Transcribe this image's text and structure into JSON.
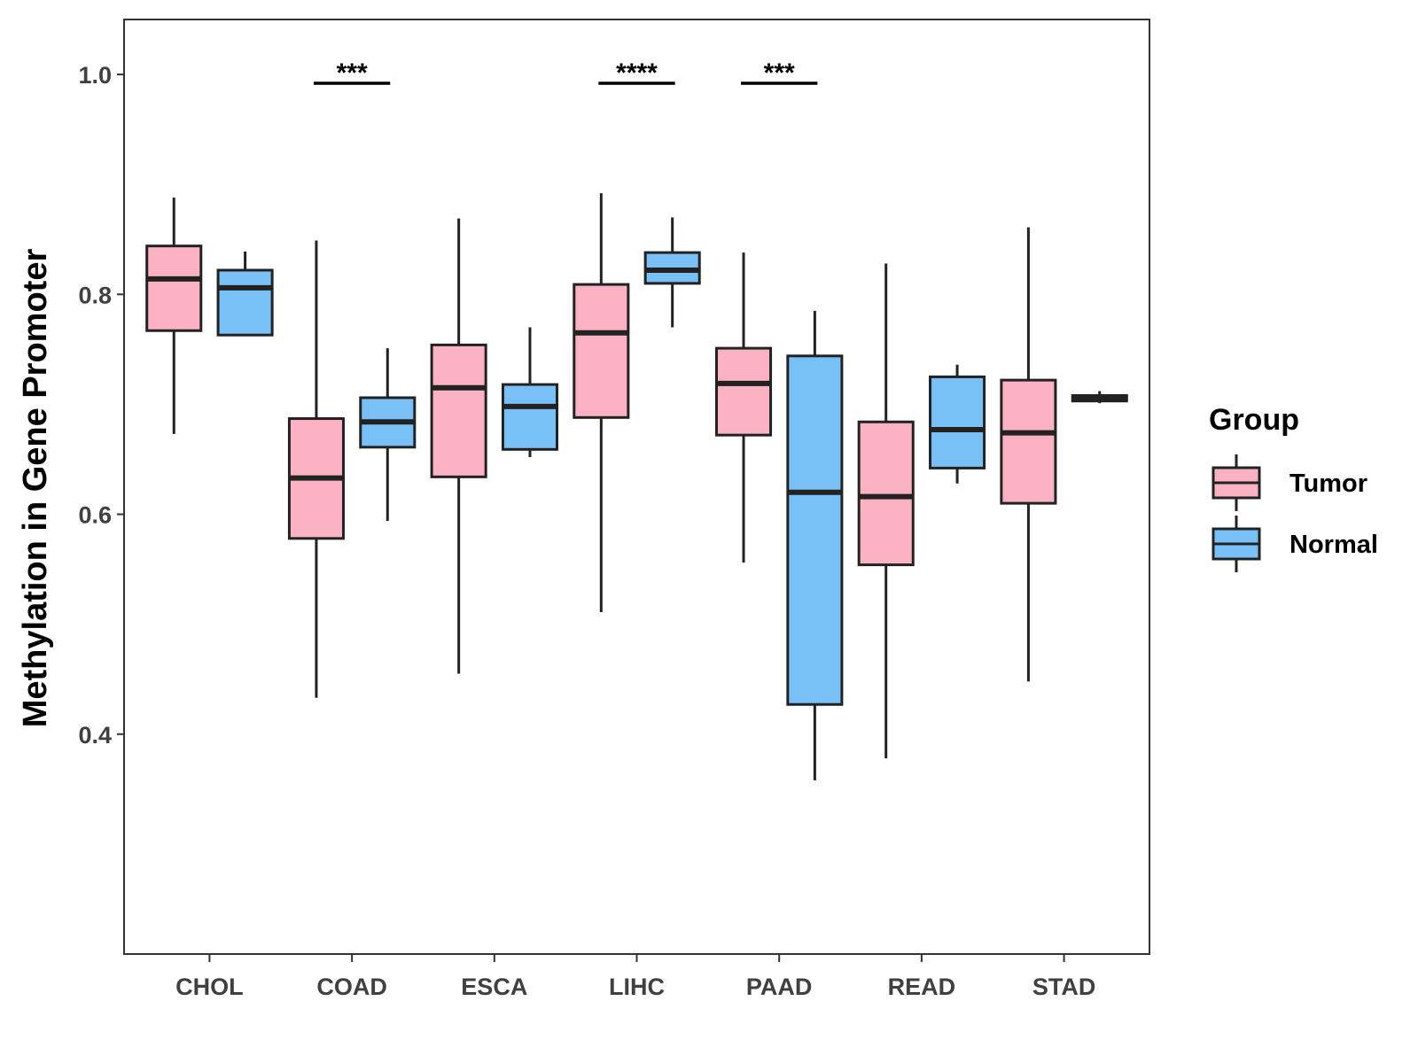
{
  "chart_data": {
    "type": "boxplot",
    "title": "",
    "xlabel": "",
    "ylabel": "Methylation in Gene Promoter",
    "ylim": [
      0.2,
      1.05
    ],
    "y_ticks": [
      0.4,
      0.6,
      0.8,
      1.0
    ],
    "y_tick_labels": [
      "0.4",
      "0.6",
      "0.8",
      "1.0"
    ],
    "categories": [
      "CHOL",
      "COAD",
      "ESCA",
      "LIHC",
      "PAAD",
      "READ",
      "STAD"
    ],
    "legend": {
      "title": "Group",
      "position": "right",
      "entries": [
        {
          "name": "Tumor",
          "color": "#fbb2c3"
        },
        {
          "name": "Normal",
          "color": "#79c0f7"
        }
      ]
    },
    "series": [
      {
        "name": "Tumor",
        "color": "#fbb2c3",
        "boxes": [
          {
            "category": "CHOL",
            "min": 0.673,
            "q1": 0.767,
            "median": 0.814,
            "q3": 0.844,
            "max": 0.888
          },
          {
            "category": "COAD",
            "min": 0.433,
            "q1": 0.578,
            "median": 0.633,
            "q3": 0.687,
            "max": 0.849
          },
          {
            "category": "ESCA",
            "min": 0.455,
            "q1": 0.634,
            "median": 0.715,
            "q3": 0.754,
            "max": 0.869
          },
          {
            "category": "LIHC",
            "min": 0.511,
            "q1": 0.688,
            "median": 0.765,
            "q3": 0.809,
            "max": 0.892
          },
          {
            "category": "PAAD",
            "min": 0.556,
            "q1": 0.672,
            "median": 0.719,
            "q3": 0.751,
            "max": 0.838
          },
          {
            "category": "READ",
            "min": 0.378,
            "q1": 0.554,
            "median": 0.616,
            "q3": 0.684,
            "max": 0.828
          },
          {
            "category": "STAD",
            "min": 0.448,
            "q1": 0.61,
            "median": 0.674,
            "q3": 0.722,
            "max": 0.861
          }
        ]
      },
      {
        "name": "Normal",
        "color": "#79c0f7",
        "boxes": [
          {
            "category": "CHOL",
            "min": 0.763,
            "q1": 0.763,
            "median": 0.806,
            "q3": 0.822,
            "max": 0.839
          },
          {
            "category": "COAD",
            "min": 0.594,
            "q1": 0.661,
            "median": 0.684,
            "q3": 0.706,
            "max": 0.751
          },
          {
            "category": "ESCA",
            "min": 0.652,
            "q1": 0.659,
            "median": 0.698,
            "q3": 0.718,
            "max": 0.77
          },
          {
            "category": "LIHC",
            "min": 0.77,
            "q1": 0.81,
            "median": 0.822,
            "q3": 0.838,
            "max": 0.87
          },
          {
            "category": "PAAD",
            "min": 0.358,
            "q1": 0.427,
            "median": 0.62,
            "q3": 0.744,
            "max": 0.785
          },
          {
            "category": "READ",
            "min": 0.628,
            "q1": 0.642,
            "median": 0.677,
            "q3": 0.725,
            "max": 0.736
          },
          {
            "category": "STAD",
            "min": 0.701,
            "q1": 0.703,
            "median": 0.706,
            "q3": 0.708,
            "max": 0.712
          }
        ]
      }
    ],
    "annotations": [
      {
        "category": "COAD",
        "text": "***",
        "y": 0.992
      },
      {
        "category": "LIHC",
        "text": "****",
        "y": 0.992
      },
      {
        "category": "PAAD",
        "text": "***",
        "y": 0.992
      }
    ]
  }
}
